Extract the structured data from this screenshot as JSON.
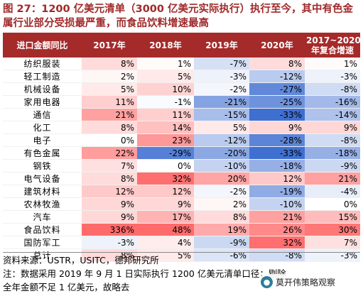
{
  "title": "图 27：1200 亿美元清单（3000 亿美元实际执行）执行至今，其中有色金属行业部分受损最严重，而食品饮料增速最高",
  "chart_data": {
    "type": "table",
    "columns": [
      "进口金额同比",
      "2017年",
      "2018年",
      "2019年",
      "2020年",
      "2017~2020年复合增速"
    ],
    "rows": [
      {
        "label": "纺织服装",
        "values": [
          8,
          1,
          -7,
          8,
          1
        ]
      },
      {
        "label": "轻工制造",
        "values": [
          2,
          5,
          -3,
          -12,
          -3
        ]
      },
      {
        "label": "机械设备",
        "values": [
          5,
          10,
          -2,
          -27,
          -8
        ]
      },
      {
        "label": "家用电器",
        "values": [
          11,
          -1,
          -21,
          -25,
          -16
        ]
      },
      {
        "label": "通信",
        "values": [
          21,
          11,
          -15,
          -33,
          -14
        ]
      },
      {
        "label": "化工",
        "values": [
          8,
          14,
          5,
          9,
          9
        ]
      },
      {
        "label": "电子",
        "values": [
          0,
          23,
          -12,
          -28,
          -8
        ]
      },
      {
        "label": "有色金属",
        "values": [
          22,
          -29,
          -20,
          -33,
          -18
        ]
      },
      {
        "label": "钢铁",
        "values": [
          7,
          0,
          -10,
          -18,
          -9
        ]
      },
      {
        "label": "电气设备",
        "values": [
          8,
          32,
          20,
          12,
          21
        ]
      },
      {
        "label": "建筑材料",
        "values": [
          12,
          12,
          -2,
          -19,
          -4
        ]
      },
      {
        "label": "农林牧渔",
        "values": [
          9,
          9,
          2,
          -10,
          0
        ]
      },
      {
        "label": "汽车",
        "values": [
          9,
          17,
          8,
          21,
          15
        ]
      },
      {
        "label": "食品饮料",
        "values": [
          336,
          48,
          19,
          26,
          30
        ]
      },
      {
        "label": "国防军工",
        "values": [
          -3,
          4,
          -9,
          32,
          7
        ]
      },
      {
        "label": "总计",
        "values": [
          8,
          5,
          -6,
          -8,
          -3
        ]
      }
    ],
    "unit": "%",
    "header_color": "#a52a2a",
    "negative_color": "#3f6fd1",
    "positive_color": "#f26b6b"
  },
  "source": "资料来源：USTR，USITC，德邦研究所",
  "note_line1": "注：数据采用 2019 年 9 月 1 日实际执行 1200 亿美元清单口径；剔除",
  "note_line2": "全年金额不足 1 亿美元，故略去",
  "watermark": {
    "text": "莫开伟策略观察",
    "icon": "wechat-icon"
  }
}
